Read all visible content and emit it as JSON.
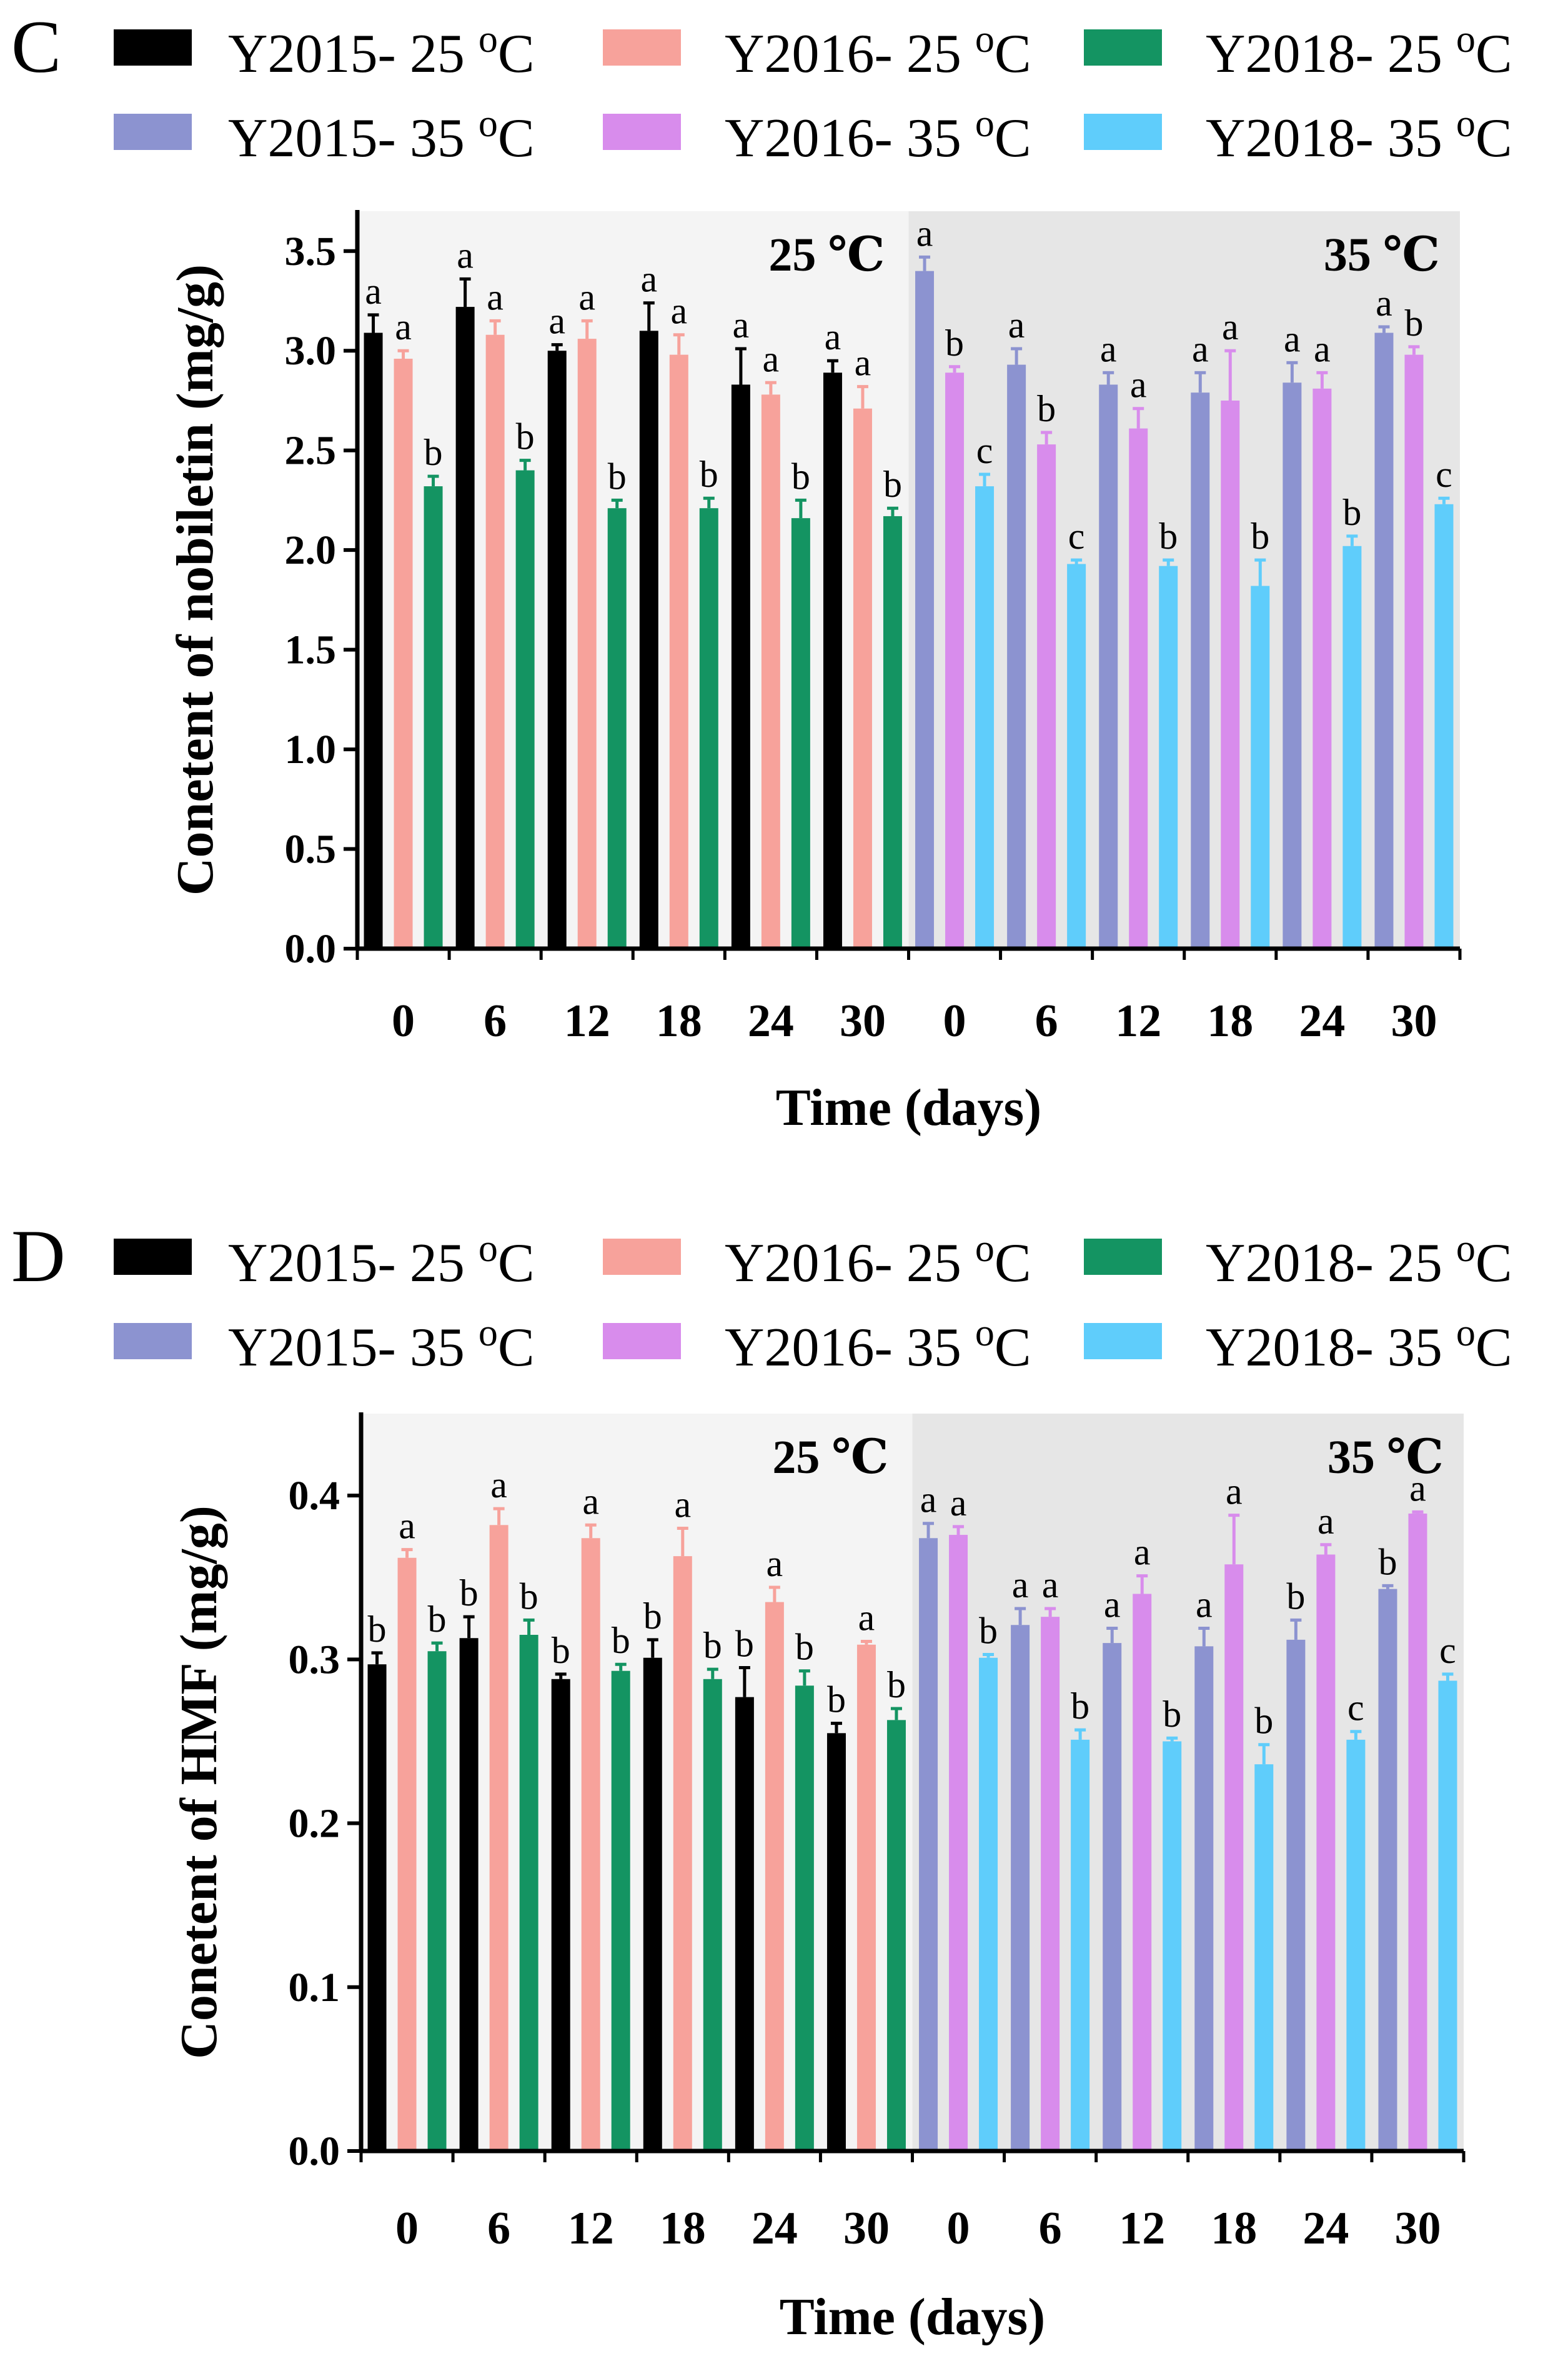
{
  "colors": {
    "Y2015-25": "#000000",
    "Y2016-25": "#f7a29b",
    "Y2018-25": "#149462",
    "Y2015-35": "#8c93d0",
    "Y2016-35": "#d88cec",
    "Y2018-35": "#5fcdfb",
    "bg25": "#f4f4f4",
    "bg35": "#e6e6e6"
  },
  "chart_data": [
    {
      "type": "bar",
      "panel": "C",
      "ylabel": "Conetent of nobiletin (mg/g)",
      "xlabel": "Time (days)",
      "ylim": [
        0,
        3.7
      ],
      "yticks": [
        "0.0",
        "0.5",
        "1.0",
        "1.5",
        "2.0",
        "2.5",
        "3.0",
        "3.5"
      ],
      "regions": [
        "25 ℃",
        "35 ℃"
      ],
      "categories": [
        "0",
        "6",
        "12",
        "18",
        "24",
        "30",
        "0",
        "6",
        "12",
        "18",
        "24",
        "30"
      ],
      "legend": [
        {
          "label": "Y2015- 25 ",
          "sup": "o",
          "unit": "C",
          "key": "Y2015-25"
        },
        {
          "label": "Y2016- 25 ",
          "sup": "o",
          "unit": "C",
          "key": "Y2016-25"
        },
        {
          "label": "Y2018- 25 ",
          "sup": "o",
          "unit": "C",
          "key": "Y2018-25"
        },
        {
          "label": "Y2015- 35 ",
          "sup": "o",
          "unit": "C",
          "key": "Y2015-35"
        },
        {
          "label": "Y2016- 35 ",
          "sup": "o",
          "unit": "C",
          "key": "Y2016-35"
        },
        {
          "label": "Y2018- 35 ",
          "sup": "o",
          "unit": "C",
          "key": "Y2018-35"
        }
      ],
      "groups": [
        {
          "region": 0,
          "bars": [
            {
              "key": "Y2015-25",
              "value": 3.09,
              "err": 0.09,
              "sig": "a"
            },
            {
              "key": "Y2016-25",
              "value": 2.96,
              "err": 0.04,
              "sig": "a"
            },
            {
              "key": "Y2018-25",
              "value": 2.32,
              "err": 0.05,
              "sig": "b"
            }
          ]
        },
        {
          "region": 0,
          "bars": [
            {
              "key": "Y2015-25",
              "value": 3.22,
              "err": 0.14,
              "sig": "a"
            },
            {
              "key": "Y2016-25",
              "value": 3.08,
              "err": 0.07,
              "sig": "a"
            },
            {
              "key": "Y2018-25",
              "value": 2.4,
              "err": 0.05,
              "sig": "b"
            }
          ]
        },
        {
          "region": 0,
          "bars": [
            {
              "key": "Y2015-25",
              "value": 3.0,
              "err": 0.03,
              "sig": "a"
            },
            {
              "key": "Y2016-25",
              "value": 3.06,
              "err": 0.09,
              "sig": "a"
            },
            {
              "key": "Y2018-25",
              "value": 2.21,
              "err": 0.04,
              "sig": "b"
            }
          ]
        },
        {
          "region": 0,
          "bars": [
            {
              "key": "Y2015-25",
              "value": 3.1,
              "err": 0.14,
              "sig": "a"
            },
            {
              "key": "Y2016-25",
              "value": 2.98,
              "err": 0.1,
              "sig": "a"
            },
            {
              "key": "Y2018-25",
              "value": 2.21,
              "err": 0.05,
              "sig": "b"
            }
          ]
        },
        {
          "region": 0,
          "bars": [
            {
              "key": "Y2015-25",
              "value": 2.83,
              "err": 0.18,
              "sig": "a"
            },
            {
              "key": "Y2016-25",
              "value": 2.78,
              "err": 0.06,
              "sig": "a"
            },
            {
              "key": "Y2018-25",
              "value": 2.16,
              "err": 0.09,
              "sig": "b"
            }
          ]
        },
        {
          "region": 0,
          "bars": [
            {
              "key": "Y2015-25",
              "value": 2.89,
              "err": 0.06,
              "sig": "a"
            },
            {
              "key": "Y2016-25",
              "value": 2.71,
              "err": 0.11,
              "sig": "a"
            },
            {
              "key": "Y2018-25",
              "value": 2.17,
              "err": 0.04,
              "sig": "b"
            }
          ]
        },
        {
          "region": 1,
          "bars": [
            {
              "key": "Y2015-35",
              "value": 3.4,
              "err": 0.07,
              "sig": "a"
            },
            {
              "key": "Y2016-35",
              "value": 2.89,
              "err": 0.03,
              "sig": "b"
            },
            {
              "key": "Y2018-35",
              "value": 2.32,
              "err": 0.06,
              "sig": "c"
            }
          ]
        },
        {
          "region": 1,
          "bars": [
            {
              "key": "Y2015-35",
              "value": 2.93,
              "err": 0.08,
              "sig": "a"
            },
            {
              "key": "Y2016-35",
              "value": 2.53,
              "err": 0.06,
              "sig": "b"
            },
            {
              "key": "Y2018-35",
              "value": 1.93,
              "err": 0.02,
              "sig": "c"
            }
          ]
        },
        {
          "region": 1,
          "bars": [
            {
              "key": "Y2015-35",
              "value": 2.83,
              "err": 0.06,
              "sig": "a"
            },
            {
              "key": "Y2016-35",
              "value": 2.61,
              "err": 0.1,
              "sig": "a"
            },
            {
              "key": "Y2018-35",
              "value": 1.92,
              "err": 0.03,
              "sig": "b"
            }
          ]
        },
        {
          "region": 1,
          "bars": [
            {
              "key": "Y2015-35",
              "value": 2.79,
              "err": 0.1,
              "sig": "a"
            },
            {
              "key": "Y2016-35",
              "value": 2.75,
              "err": 0.25,
              "sig": "a"
            },
            {
              "key": "Y2018-35",
              "value": 1.82,
              "err": 0.13,
              "sig": "b"
            }
          ]
        },
        {
          "region": 1,
          "bars": [
            {
              "key": "Y2015-35",
              "value": 2.84,
              "err": 0.1,
              "sig": "a"
            },
            {
              "key": "Y2016-35",
              "value": 2.81,
              "err": 0.08,
              "sig": "a"
            },
            {
              "key": "Y2018-35",
              "value": 2.02,
              "err": 0.05,
              "sig": "b"
            }
          ]
        },
        {
          "region": 1,
          "bars": [
            {
              "key": "Y2015-35",
              "value": 3.09,
              "err": 0.03,
              "sig": "a"
            },
            {
              "key": "Y2016-35",
              "value": 2.98,
              "err": 0.04,
              "sig": "b"
            },
            {
              "key": "Y2018-35",
              "value": 2.23,
              "err": 0.03,
              "sig": "c"
            }
          ]
        }
      ]
    },
    {
      "type": "bar",
      "panel": "D",
      "ylabel": "Conetent of HMF (mg/g)",
      "xlabel": "Time (days)",
      "ylim": [
        0,
        0.45
      ],
      "yticks": [
        "0.0",
        "0.1",
        "0.2",
        "0.3",
        "0.4"
      ],
      "regions": [
        "25 ℃",
        "35 ℃"
      ],
      "categories": [
        "0",
        "6",
        "12",
        "18",
        "24",
        "30",
        "0",
        "6",
        "12",
        "18",
        "24",
        "30"
      ],
      "legend": [
        {
          "label": "Y2015- 25 ",
          "sup": "o",
          "unit": "C",
          "key": "Y2015-25"
        },
        {
          "label": "Y2016- 25 ",
          "sup": "o",
          "unit": "C",
          "key": "Y2016-25"
        },
        {
          "label": "Y2018- 25 ",
          "sup": "o",
          "unit": "C",
          "key": "Y2018-25"
        },
        {
          "label": "Y2015- 35 ",
          "sup": "o",
          "unit": "C",
          "key": "Y2015-35"
        },
        {
          "label": "Y2016- 35 ",
          "sup": "o",
          "unit": "C",
          "key": "Y2016-35"
        },
        {
          "label": "Y2018- 35 ",
          "sup": "o",
          "unit": "C",
          "key": "Y2018-35"
        }
      ],
      "groups": [
        {
          "region": 0,
          "bars": [
            {
              "key": "Y2015-25",
              "value": 0.297,
              "err": 0.007,
              "sig": "b"
            },
            {
              "key": "Y2016-25",
              "value": 0.362,
              "err": 0.005,
              "sig": "a"
            },
            {
              "key": "Y2018-25",
              "value": 0.305,
              "err": 0.005,
              "sig": "b"
            }
          ]
        },
        {
          "region": 0,
          "bars": [
            {
              "key": "Y2015-25",
              "value": 0.313,
              "err": 0.013,
              "sig": "b"
            },
            {
              "key": "Y2016-25",
              "value": 0.382,
              "err": 0.01,
              "sig": "a"
            },
            {
              "key": "Y2018-25",
              "value": 0.315,
              "err": 0.009,
              "sig": "b"
            }
          ]
        },
        {
          "region": 0,
          "bars": [
            {
              "key": "Y2015-25",
              "value": 0.288,
              "err": 0.003,
              "sig": "b"
            },
            {
              "key": "Y2016-25",
              "value": 0.374,
              "err": 0.008,
              "sig": "a"
            },
            {
              "key": "Y2018-25",
              "value": 0.293,
              "err": 0.004,
              "sig": "b"
            }
          ]
        },
        {
          "region": 0,
          "bars": [
            {
              "key": "Y2015-25",
              "value": 0.301,
              "err": 0.011,
              "sig": "b"
            },
            {
              "key": "Y2016-25",
              "value": 0.363,
              "err": 0.017,
              "sig": "a"
            },
            {
              "key": "Y2018-25",
              "value": 0.288,
              "err": 0.006,
              "sig": "b"
            }
          ]
        },
        {
          "region": 0,
          "bars": [
            {
              "key": "Y2015-25",
              "value": 0.277,
              "err": 0.018,
              "sig": "b"
            },
            {
              "key": "Y2016-25",
              "value": 0.335,
              "err": 0.009,
              "sig": "a"
            },
            {
              "key": "Y2018-25",
              "value": 0.284,
              "err": 0.009,
              "sig": "b"
            }
          ]
        },
        {
          "region": 0,
          "bars": [
            {
              "key": "Y2015-25",
              "value": 0.255,
              "err": 0.006,
              "sig": "b"
            },
            {
              "key": "Y2016-25",
              "value": 0.309,
              "err": 0.002,
              "sig": "a"
            },
            {
              "key": "Y2018-25",
              "value": 0.263,
              "err": 0.007,
              "sig": "b"
            }
          ]
        },
        {
          "region": 1,
          "bars": [
            {
              "key": "Y2015-35",
              "value": 0.374,
              "err": 0.009,
              "sig": "a"
            },
            {
              "key": "Y2016-35",
              "value": 0.376,
              "err": 0.005,
              "sig": "a"
            },
            {
              "key": "Y2018-35",
              "value": 0.301,
              "err": 0.002,
              "sig": "b"
            }
          ]
        },
        {
          "region": 1,
          "bars": [
            {
              "key": "Y2015-35",
              "value": 0.321,
              "err": 0.01,
              "sig": "a"
            },
            {
              "key": "Y2016-35",
              "value": 0.326,
              "err": 0.005,
              "sig": "a"
            },
            {
              "key": "Y2018-35",
              "value": 0.251,
              "err": 0.006,
              "sig": "b"
            }
          ]
        },
        {
          "region": 1,
          "bars": [
            {
              "key": "Y2015-35",
              "value": 0.31,
              "err": 0.009,
              "sig": "a"
            },
            {
              "key": "Y2016-35",
              "value": 0.34,
              "err": 0.011,
              "sig": "a"
            },
            {
              "key": "Y2018-35",
              "value": 0.25,
              "err": 0.002,
              "sig": "b"
            }
          ]
        },
        {
          "region": 1,
          "bars": [
            {
              "key": "Y2015-35",
              "value": 0.308,
              "err": 0.011,
              "sig": "a"
            },
            {
              "key": "Y2016-35",
              "value": 0.358,
              "err": 0.03,
              "sig": "a"
            },
            {
              "key": "Y2018-35",
              "value": 0.236,
              "err": 0.012,
              "sig": "b"
            }
          ]
        },
        {
          "region": 1,
          "bars": [
            {
              "key": "Y2015-35",
              "value": 0.312,
              "err": 0.012,
              "sig": "b"
            },
            {
              "key": "Y2016-35",
              "value": 0.364,
              "err": 0.006,
              "sig": "a"
            },
            {
              "key": "Y2018-35",
              "value": 0.251,
              "err": 0.005,
              "sig": "c"
            }
          ]
        },
        {
          "region": 1,
          "bars": [
            {
              "key": "Y2015-35",
              "value": 0.343,
              "err": 0.002,
              "sig": "b"
            },
            {
              "key": "Y2016-35",
              "value": 0.389,
              "err": 0.001,
              "sig": "a"
            },
            {
              "key": "Y2018-35",
              "value": 0.287,
              "err": 0.004,
              "sig": "c"
            }
          ]
        }
      ]
    }
  ]
}
